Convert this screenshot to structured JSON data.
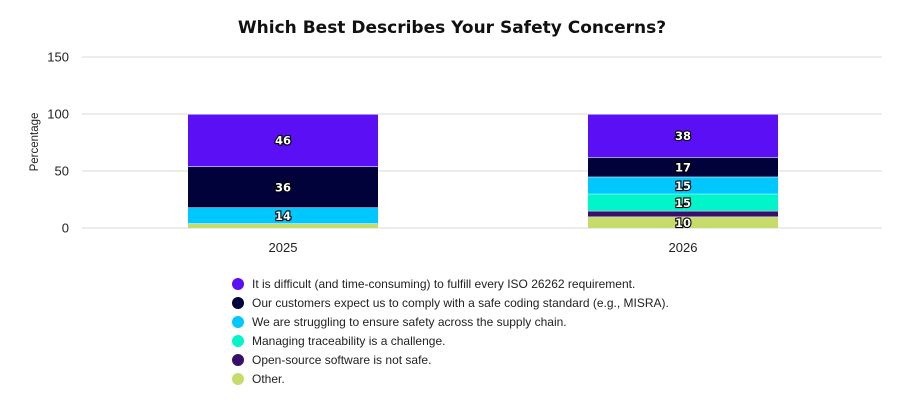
{
  "chart_data": {
    "type": "bar",
    "stacked": true,
    "title": "Which Best Describes Your Safety Concerns?",
    "ylabel": "Percentage",
    "xlabel": "",
    "ylim": [
      0,
      150
    ],
    "yticks": [
      0,
      50,
      100,
      150
    ],
    "grid": true,
    "legend_position": "bottom",
    "categories": [
      "2025",
      "2026"
    ],
    "series": [
      {
        "name": "Other.",
        "color": "#c5dc6a",
        "values": [
          4,
          10
        ],
        "labels": [
          "",
          "10"
        ]
      },
      {
        "name": "Open-source software is not safe.",
        "color": "#3a0f6b",
        "values": [
          0,
          5
        ],
        "labels": [
          "",
          ""
        ]
      },
      {
        "name": "Managing traceability is a challenge.",
        "color": "#00f5c8",
        "values": [
          0,
          15
        ],
        "labels": [
          "",
          "15"
        ]
      },
      {
        "name": "We are struggling to ensure safety across the supply chain.",
        "color": "#00c8ff",
        "values": [
          14,
          15
        ],
        "labels": [
          "14",
          "15"
        ]
      },
      {
        "name": "Our customers expect us to comply with a safe coding standard (e.g., MISRA).",
        "color": "#02023a",
        "values": [
          36,
          17
        ],
        "labels": [
          "36",
          "17"
        ]
      },
      {
        "name": "It is difficult (and time-consuming) to fulfill every ISO 26262 requirement.",
        "color": "#5a0ff5",
        "values": [
          46,
          38
        ],
        "labels": [
          "46",
          "38"
        ]
      }
    ]
  },
  "legend": [
    {
      "label": "It is difficult (and time-consuming) to fulfill every ISO 26262 requirement.",
      "color": "#5a0ff5"
    },
    {
      "label": "Our customers expect us to comply with a safe coding standard (e.g., MISRA).",
      "color": "#02023a"
    },
    {
      "label": "We are struggling to ensure safety across the supply chain.",
      "color": "#00c8ff"
    },
    {
      "label": "Managing traceability is a challenge.",
      "color": "#00f5c8"
    },
    {
      "label": "Open-source software is not safe.",
      "color": "#3a0f6b"
    },
    {
      "label": "Other.",
      "color": "#c5dc6a"
    }
  ]
}
